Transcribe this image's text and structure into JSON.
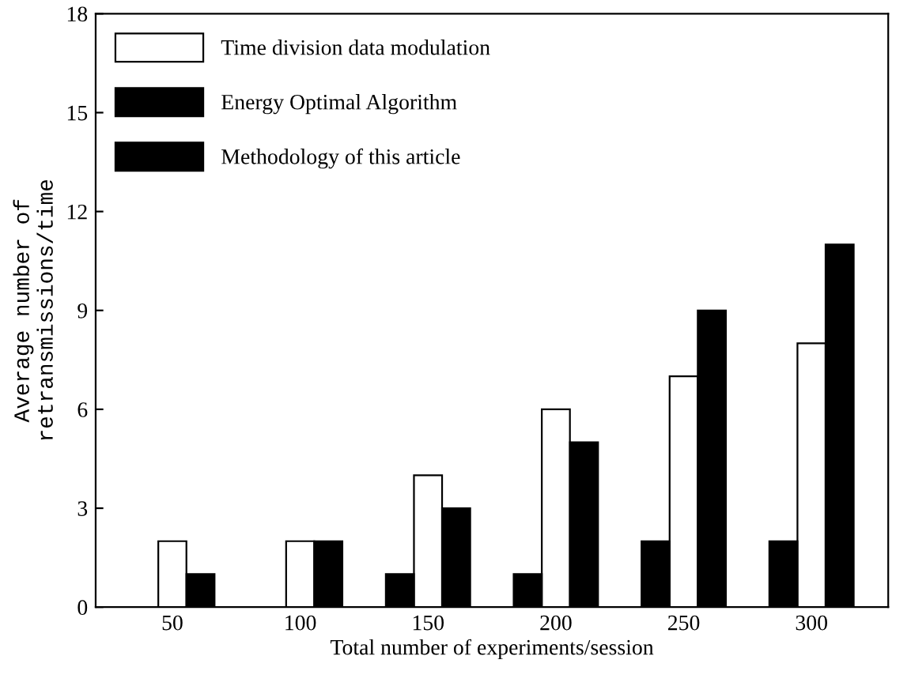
{
  "chart_data": {
    "type": "bar",
    "xlabel": "Total number of experiments/session",
    "ylabel": "Average number of\nretransmissions/time",
    "categories": [
      "50",
      "100",
      "150",
      "200",
      "250",
      "300"
    ],
    "series": [
      {
        "name": "Time division data modulation",
        "color": "#ffffff",
        "values": [
          2,
          2,
          4,
          6,
          7,
          8
        ]
      },
      {
        "name": "Energy Optimal Algorithm",
        "color": "#000000",
        "values": [
          1,
          2,
          3,
          5,
          9,
          11
        ]
      },
      {
        "name": "Methodology of this article",
        "color": "#000000",
        "values": [
          0,
          0,
          1,
          1,
          2,
          2
        ]
      }
    ],
    "ylim": [
      0,
      18
    ],
    "yticks": [
      0,
      3,
      6,
      9,
      12,
      15,
      18
    ],
    "grid": false,
    "legend": "top left"
  }
}
